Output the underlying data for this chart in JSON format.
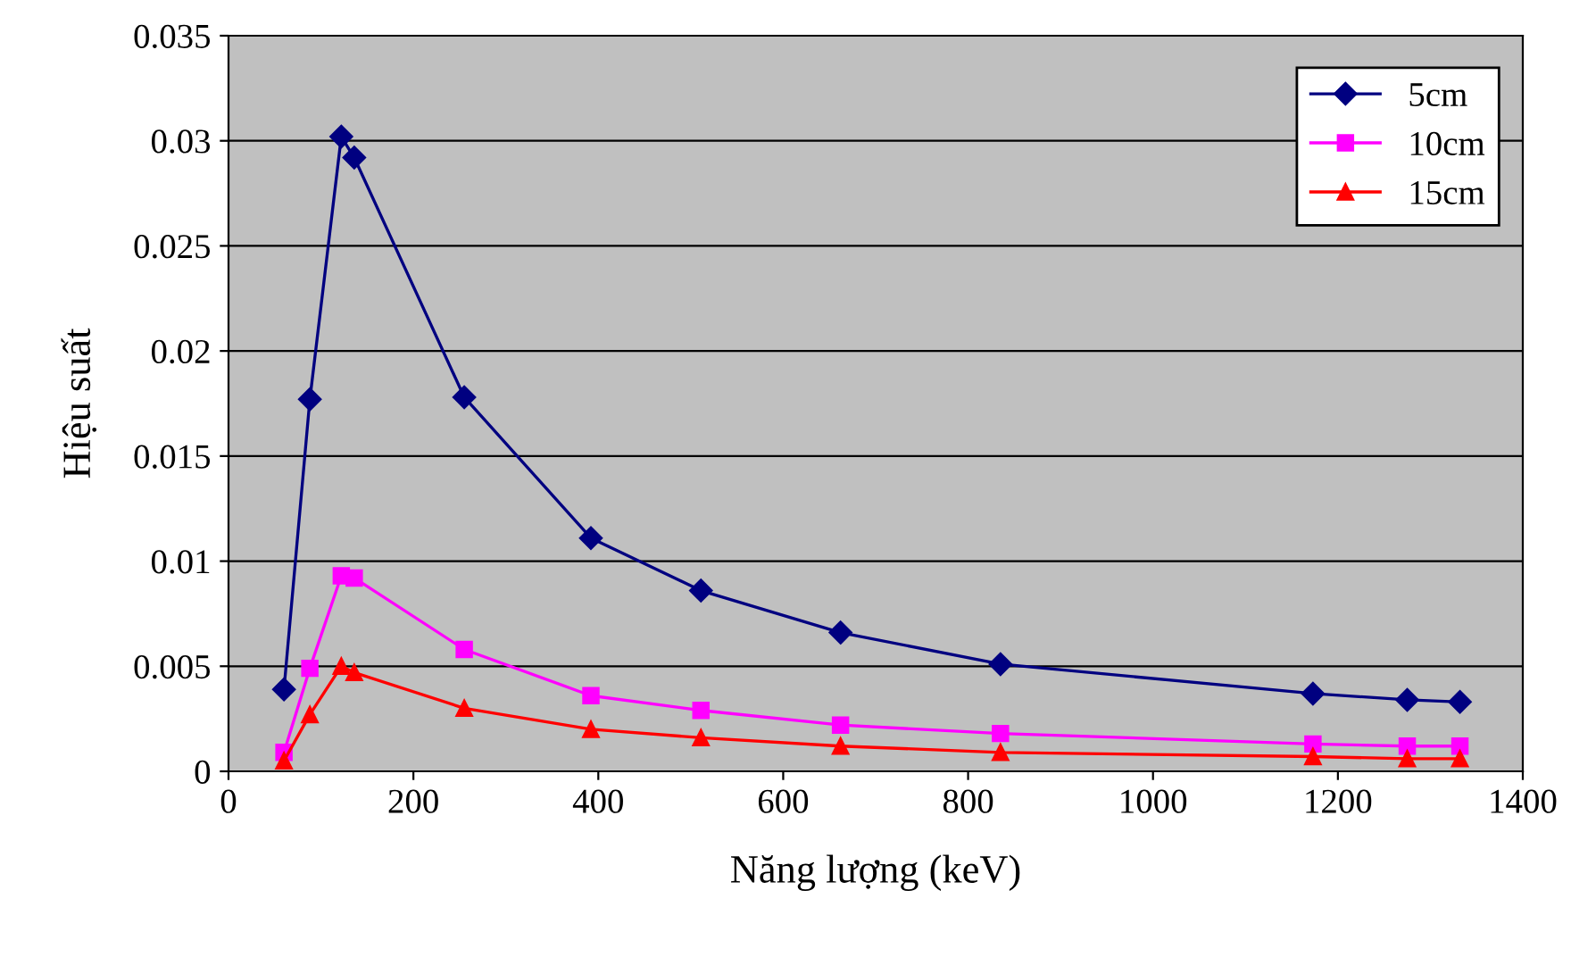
{
  "chart_data": {
    "type": "line",
    "xlabel": "Năng lượng (keV)",
    "ylabel": "Hiệu suất",
    "x": [
      60,
      88,
      122,
      136,
      255,
      392,
      511,
      662,
      835,
      1173,
      1275,
      1332
    ],
    "series": [
      {
        "name": "5cm",
        "color": "#000080",
        "marker": "diamond",
        "values": [
          0.0039,
          0.0177,
          0.0302,
          0.0292,
          0.0178,
          0.0111,
          0.0086,
          0.0066,
          0.0051,
          0.0037,
          0.0034,
          0.0033
        ]
      },
      {
        "name": "10cm",
        "color": "#ff00ff",
        "marker": "square",
        "values": [
          0.0009,
          0.0049,
          0.0093,
          0.0092,
          0.0058,
          0.0036,
          0.0029,
          0.0022,
          0.0018,
          0.0013,
          0.0012,
          0.0012
        ]
      },
      {
        "name": "15cm",
        "color": "#ff0000",
        "marker": "triangle",
        "values": [
          0.0005,
          0.0027,
          0.005,
          0.0047,
          0.003,
          0.002,
          0.0016,
          0.0012,
          0.0009,
          0.0007,
          0.0006,
          0.0006
        ]
      }
    ],
    "xlim": [
      0,
      1400
    ],
    "xticks": [
      0,
      200,
      400,
      600,
      800,
      1000,
      1200,
      1400
    ],
    "ylim": [
      0,
      0.035
    ],
    "yticks": [
      0,
      0.005,
      0.01,
      0.015,
      0.02,
      0.025,
      0.03,
      0.035
    ],
    "grid": "y",
    "legend": "top right"
  }
}
